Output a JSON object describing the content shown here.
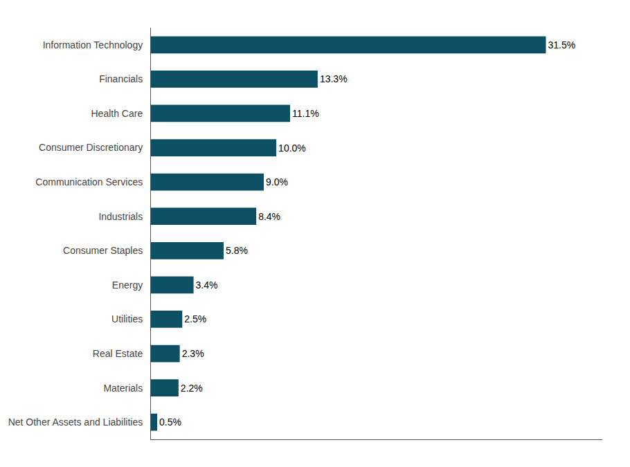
{
  "chart_data": {
    "type": "bar",
    "orientation": "horizontal",
    "categories": [
      "Net Other Assets and Liabilities",
      "Materials",
      "Real Estate",
      "Utilities",
      "Energy",
      "Consumer Staples",
      "Industrials",
      "Communication Services",
      "Consumer Discretionary",
      "Health Care",
      "Financials",
      "Information Technology"
    ],
    "values": [
      0.5,
      2.2,
      2.3,
      2.5,
      3.4,
      5.8,
      8.4,
      9.0,
      10.0,
      11.1,
      13.3,
      31.5
    ],
    "value_labels": [
      "0.5%",
      "2.2%",
      "2.3%",
      "2.5%",
      "3.4%",
      "5.8%",
      "8.4%",
      "9.0%",
      "10.0%",
      "11.1%",
      "13.3%",
      "31.5%"
    ],
    "color": "#0d4f63",
    "xlim": [
      0,
      36
    ],
    "xticks": [],
    "grid": false,
    "data_labels": true,
    "tick_labels": "y"
  }
}
